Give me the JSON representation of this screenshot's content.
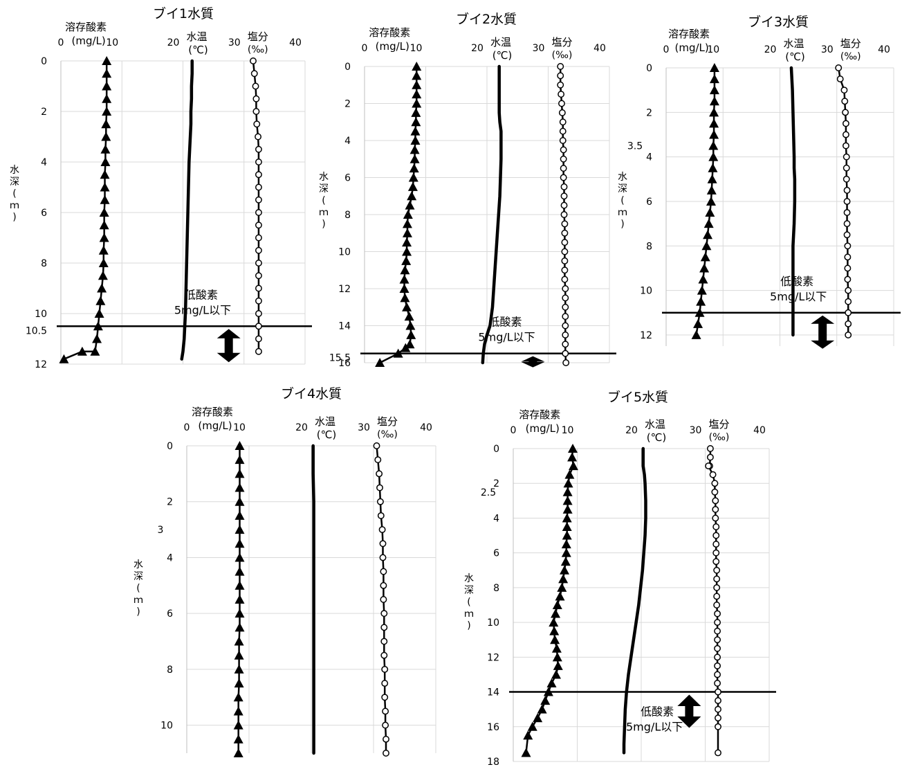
{
  "chart_data": [
    {
      "type": "line",
      "title": "ブイ1水質",
      "x_ticks": [
        0,
        10,
        20,
        30,
        40
      ],
      "xlim": [
        0,
        40
      ],
      "ylim": [
        0,
        12
      ],
      "y_ticks": [
        0,
        2,
        4,
        6,
        8,
        10,
        12
      ],
      "ylabel": "水深(ｍ)",
      "axis_labels": {
        "do": "溶存酸素",
        "do_unit": "(mg/L)",
        "temp": "水温",
        "temp_unit": "(℃)",
        "sal": "塩分",
        "sal_unit": "(‰)"
      },
      "hypoxia": {
        "depth": 10.5,
        "depth_label": "10.5",
        "label1": "低酸素",
        "label2": "5mg/L以下"
      },
      "series": [
        {
          "name": "溶存酸素",
          "marker": "triangle",
          "x": [
            7.5,
            7.5,
            7.5,
            7.5,
            7.5,
            7.4,
            7.4,
            7.3,
            7.3,
            7.2,
            7.2,
            7.2,
            7.1,
            7.1,
            7.1,
            7.0,
            7.0,
            6.9,
            6.7,
            6.5,
            6.3,
            6.1,
            5.9,
            5.6,
            3.5,
            0.5
          ],
          "y": [
            0,
            0.5,
            1,
            1.5,
            2,
            2.5,
            3,
            3.5,
            4,
            4.5,
            5,
            5.5,
            6,
            6.5,
            7,
            7.5,
            8,
            8.5,
            9,
            9.5,
            10,
            10.5,
            11,
            11.5,
            11.5,
            11.8
          ]
        },
        {
          "name": "水温",
          "marker": "none",
          "x": [
            21.5,
            21.5,
            21.4,
            21.4,
            21.3,
            21.3,
            21.2,
            21.0,
            20.9,
            20.8,
            20.7,
            20.6,
            20.5,
            20.4,
            20.3,
            20.2,
            20.0,
            19.8
          ],
          "y": [
            0,
            0.5,
            1,
            1.5,
            2,
            2.5,
            3,
            4,
            5,
            6,
            7,
            8,
            9,
            10,
            10.5,
            11,
            11.5,
            11.8
          ]
        },
        {
          "name": "塩分",
          "marker": "circle",
          "x": [
            31.5,
            31.7,
            31.9,
            32.0,
            32.0,
            32.1,
            32.3,
            32.4,
            32.4,
            32.4,
            32.4,
            32.4,
            32.4,
            32.4,
            32.4,
            32.4,
            32.4,
            32.4,
            32.4,
            32.4,
            32.4,
            32.4,
            32.4,
            32.4
          ],
          "y": [
            0,
            0.5,
            1,
            1.5,
            2,
            2.5,
            3,
            3.5,
            4,
            4.5,
            5,
            5.5,
            6,
            6.5,
            7,
            7.5,
            8,
            8.5,
            9,
            9.5,
            10,
            10.5,
            11,
            11.5
          ]
        }
      ]
    },
    {
      "type": "line",
      "title": "ブイ2水質",
      "x_ticks": [
        0,
        10,
        20,
        30,
        40
      ],
      "xlim": [
        0,
        40
      ],
      "ylim": [
        0,
        16
      ],
      "y_ticks": [
        0,
        2,
        4,
        6,
        8,
        10,
        12,
        14,
        16
      ],
      "ylabel": "水深(ｍ)",
      "axis_labels": {
        "do": "溶存酸素",
        "do_unit": "(mg/L)",
        "temp": "水温",
        "temp_unit": "(℃)",
        "sal": "塩分",
        "sal_unit": "(‰)"
      },
      "hypoxia": {
        "depth": 15.5,
        "depth_label": "15.5",
        "label1": "低酸素",
        "label2": "5mg/L以下"
      },
      "series": [
        {
          "name": "溶存酸素",
          "marker": "triangle",
          "x": [
            8.5,
            8.5,
            8.5,
            8.5,
            8.5,
            8.4,
            8.4,
            8.3,
            8.3,
            8.2,
            8.2,
            8.1,
            8.0,
            7.9,
            7.7,
            7.4,
            7.1,
            7.0,
            7.0,
            6.9,
            6.9,
            6.8,
            6.6,
            6.5,
            6.5,
            6.6,
            6.9,
            7.3,
            7.5,
            7.6,
            7.4,
            6.7,
            5.5,
            2.5
          ],
          "y": [
            0,
            0.5,
            1,
            1.5,
            2,
            2.5,
            3,
            3.5,
            4,
            4.5,
            5,
            5.5,
            6,
            6.5,
            7,
            7.5,
            8,
            8.5,
            9,
            9.5,
            10,
            10.5,
            11,
            11.5,
            12,
            12.5,
            13,
            13.5,
            14,
            14.5,
            15,
            15.2,
            15.5,
            16
          ]
        },
        {
          "name": "水温",
          "marker": "none",
          "x": [
            22.0,
            22.0,
            22.0,
            22.0,
            22.1,
            22.3,
            22.3,
            22.3,
            22.2,
            22.1,
            21.9,
            21.7,
            21.5,
            21.3,
            21.1,
            20.9,
            20.5,
            20.0,
            19.6,
            19.4,
            19.3
          ],
          "y": [
            0,
            1,
            2,
            2.5,
            3,
            3.5,
            4,
            5,
            6,
            7,
            8,
            9,
            10,
            11,
            12,
            13,
            14,
            14.5,
            15,
            15.5,
            16
          ]
        },
        {
          "name": "塩分",
          "marker": "circle",
          "x": [
            32.0,
            32.0,
            32.0,
            32.1,
            32.2,
            32.3,
            32.4,
            32.4,
            32.4,
            32.5,
            32.5,
            32.5,
            32.5,
            32.6,
            32.6,
            32.6,
            32.6,
            32.7,
            32.7,
            32.7,
            32.7,
            32.7,
            32.7,
            32.7,
            32.8,
            32.8,
            32.8,
            32.8,
            32.8,
            32.8,
            32.8,
            32.8,
            32.9
          ],
          "y": [
            0,
            0.5,
            1,
            1.5,
            2,
            2.5,
            3,
            3.5,
            4,
            4.5,
            5,
            5.5,
            6,
            6.5,
            7,
            7.5,
            8,
            8.5,
            9,
            9.5,
            10,
            10.5,
            11,
            11.5,
            12,
            12.5,
            13,
            13.5,
            14,
            14.5,
            15,
            15.5,
            16
          ]
        }
      ]
    },
    {
      "type": "line",
      "title": "ブイ3水質",
      "x_ticks": [
        0,
        10,
        20,
        30,
        40
      ],
      "xlim": [
        0,
        40
      ],
      "ylim": [
        0,
        12.5
      ],
      "y_ticks": [
        0,
        2,
        4,
        6,
        8,
        10,
        12
      ],
      "ylabel": "水深(ｍ)",
      "axis_labels": {
        "do": "溶存酸素",
        "do_unit": "(mg/L)",
        "temp": "水温",
        "temp_unit": "(℃)",
        "sal": "塩分",
        "sal_unit": "(‰)"
      },
      "extra_label": {
        "text": "3.5",
        "depth": 3.5
      },
      "hypoxia": {
        "depth": 11,
        "depth_label": "",
        "label1": "低酸素",
        "label2": "5mg/L以下"
      },
      "series": [
        {
          "name": "溶存酸素",
          "marker": "triangle",
          "x": [
            8.5,
            8.5,
            8.5,
            8.5,
            8.4,
            8.4,
            8.4,
            8.3,
            8.3,
            8.2,
            8.1,
            8.0,
            7.9,
            7.7,
            7.5,
            7.3,
            7.1,
            6.9,
            6.7,
            6.5,
            6.3,
            6.1,
            5.9,
            5.6,
            5.3
          ],
          "y": [
            0,
            0.5,
            1,
            1.5,
            2,
            2.5,
            3,
            3.5,
            4,
            4.5,
            5,
            5.5,
            6,
            6.5,
            7,
            7.5,
            8,
            8.5,
            9,
            9.5,
            10,
            10.5,
            11,
            11.5,
            12
          ]
        },
        {
          "name": "水温",
          "marker": "none",
          "x": [
            22.0,
            22.2,
            22.3,
            22.4,
            22.5,
            22.5,
            22.6,
            22.6,
            22.5,
            22.4,
            22.3,
            22.3,
            22.3,
            22.3,
            22.3
          ],
          "y": [
            0,
            1,
            2,
            3,
            4,
            4.5,
            5,
            6,
            7,
            7.5,
            8,
            9,
            10,
            11,
            12
          ]
        },
        {
          "name": "塩分",
          "marker": "circle",
          "x": [
            30.3,
            30.6,
            31.3,
            31.4,
            31.5,
            31.6,
            31.6,
            31.6,
            31.7,
            31.7,
            31.7,
            31.8,
            31.8,
            31.8,
            31.8,
            31.8,
            31.9,
            31.9,
            31.9,
            31.9,
            32.0,
            32.0,
            32.0,
            32.0,
            32.0
          ],
          "y": [
            0,
            0.5,
            1,
            1.5,
            2,
            2.5,
            3,
            3.5,
            4,
            4.5,
            5,
            5.5,
            6,
            6.5,
            7,
            7.5,
            8,
            8.5,
            9,
            9.5,
            10,
            10.5,
            11,
            11.5,
            12
          ]
        }
      ]
    },
    {
      "type": "line",
      "title": "ブイ4水質",
      "x_ticks": [
        0,
        10,
        20,
        30,
        40
      ],
      "xlim": [
        0,
        40
      ],
      "ylim": [
        0,
        11
      ],
      "y_ticks": [
        0,
        2,
        4,
        6,
        8,
        10
      ],
      "ylabel": "水深(ｍ)",
      "axis_labels": {
        "do": "溶存酸素",
        "do_unit": "(mg/L)",
        "temp": "水温",
        "temp_unit": "(℃)",
        "sal": "塩分",
        "sal_unit": "(‰)"
      },
      "extra_label": {
        "text": "3",
        "depth": 3
      },
      "hypoxia": null,
      "series": [
        {
          "name": "溶存酸素",
          "marker": "triangle",
          "x": [
            8.5,
            8.5,
            8.5,
            8.5,
            8.5,
            8.5,
            8.5,
            8.5,
            8.5,
            8.5,
            8.5,
            8.5,
            8.5,
            8.5,
            8.4,
            8.4,
            8.4,
            8.4,
            8.3,
            8.3,
            8.3,
            8.3,
            8.3
          ],
          "y": [
            0,
            0.5,
            1,
            1.5,
            2,
            2.5,
            3,
            3.5,
            4,
            4.5,
            5,
            5.5,
            6,
            6.5,
            7,
            7.5,
            8,
            8.5,
            9,
            9.5,
            10,
            10.5,
            11
          ]
        },
        {
          "name": "水温",
          "marker": "none",
          "x": [
            20.3,
            20.3,
            20.4,
            20.4,
            20.4,
            20.4,
            20.4,
            20.4,
            20.4,
            20.4,
            20.4,
            20.4
          ],
          "y": [
            0,
            1,
            2,
            3,
            4,
            5,
            6,
            7,
            8,
            9,
            10,
            11
          ]
        },
        {
          "name": "塩分",
          "marker": "circle",
          "x": [
            30.5,
            30.7,
            30.9,
            31.0,
            31.1,
            31.2,
            31.4,
            31.5,
            31.5,
            31.6,
            31.6,
            31.6,
            31.7,
            31.7,
            31.7,
            31.7,
            31.8,
            31.8,
            31.8,
            31.9,
            31.9,
            32.0,
            32.0
          ],
          "y": [
            0,
            0.5,
            1,
            1.5,
            2,
            2.5,
            3,
            3.5,
            4,
            4.5,
            5,
            5.5,
            6,
            6.5,
            7,
            7.5,
            8,
            8.5,
            9,
            9.5,
            10,
            10.5,
            11
          ]
        }
      ]
    },
    {
      "type": "line",
      "title": "ブイ5水質",
      "x_ticks": [
        0,
        10,
        20,
        30,
        40
      ],
      "xlim": [
        0,
        40
      ],
      "ylim": [
        0,
        18
      ],
      "y_ticks": [
        0,
        2,
        4,
        6,
        8,
        10,
        12,
        14,
        16,
        18
      ],
      "ylabel": "水深(ｍ)",
      "axis_labels": {
        "do": "溶存酸素",
        "do_unit": "(mg/L)",
        "temp": "水温",
        "temp_unit": "(℃)",
        "sal": "塩分",
        "sal_unit": "(‰)"
      },
      "extra_label": {
        "text": "2.5",
        "depth": 2.5
      },
      "hypoxia": {
        "depth": 14,
        "depth_label": "",
        "label1": "低酸素",
        "label2": "5mg/L以下"
      },
      "series": [
        {
          "name": "溶存酸素",
          "marker": "triangle",
          "x": [
            9.3,
            9.2,
            9.4,
            8.8,
            8.6,
            8.5,
            8.5,
            8.5,
            8.4,
            8.4,
            8.4,
            8.3,
            8.3,
            8.2,
            8.0,
            7.8,
            7.6,
            7.3,
            6.9,
            6.6,
            6.3,
            6.4,
            6.5,
            6.8,
            6.9,
            7.0,
            6.7,
            6.0,
            5.5,
            5.0,
            4.5,
            3.8,
            3.0,
            2.3,
            2.0
          ],
          "y": [
            0,
            0.5,
            1,
            1.5,
            2,
            2.5,
            3,
            3.5,
            4,
            4.5,
            5,
            5.5,
            6,
            6.5,
            7,
            7.5,
            8,
            8.5,
            9,
            9.5,
            10,
            10.5,
            11,
            11.5,
            12,
            12.5,
            13,
            13.5,
            14,
            14.5,
            15,
            15.5,
            16,
            16.5,
            17.5
          ]
        },
        {
          "name": "水温",
          "marker": "none",
          "x": [
            20.3,
            20.3,
            20.5,
            20.6,
            20.7,
            20.7,
            20.6,
            20.4,
            20.2,
            19.9,
            19.6,
            19.2,
            18.8,
            18.4,
            18.0,
            17.7,
            17.5,
            17.4,
            17.3,
            17.3
          ],
          "y": [
            0,
            1,
            1.5,
            2,
            3,
            4,
            5,
            6,
            7,
            8,
            9,
            10,
            11,
            12,
            13,
            14,
            15,
            16,
            17,
            17.5
          ]
        },
        {
          "name": "塩分",
          "marker": "circle",
          "x": [
            30.8,
            30.8,
            30.7,
            30.5,
            31.2,
            31.5,
            31.5,
            31.6,
            31.6,
            31.6,
            31.7,
            31.7,
            31.7,
            31.7,
            31.7,
            31.8,
            31.8,
            31.8,
            31.8,
            31.8,
            31.9,
            31.9,
            31.9,
            31.9,
            31.9,
            31.9,
            31.9,
            31.9,
            31.9,
            32.0,
            32.0,
            32.0,
            32.0,
            32.0,
            32.0
          ],
          "y": [
            0,
            0.5,
            1,
            1,
            1.5,
            2,
            2.5,
            3,
            3.5,
            4,
            4.5,
            5,
            5.5,
            6,
            6.5,
            7,
            7.5,
            8,
            8.5,
            9,
            9.5,
            10,
            10.5,
            11,
            11.5,
            12,
            12.5,
            13,
            13.5,
            14,
            14.5,
            15,
            15.5,
            16,
            17.5
          ]
        }
      ]
    }
  ]
}
